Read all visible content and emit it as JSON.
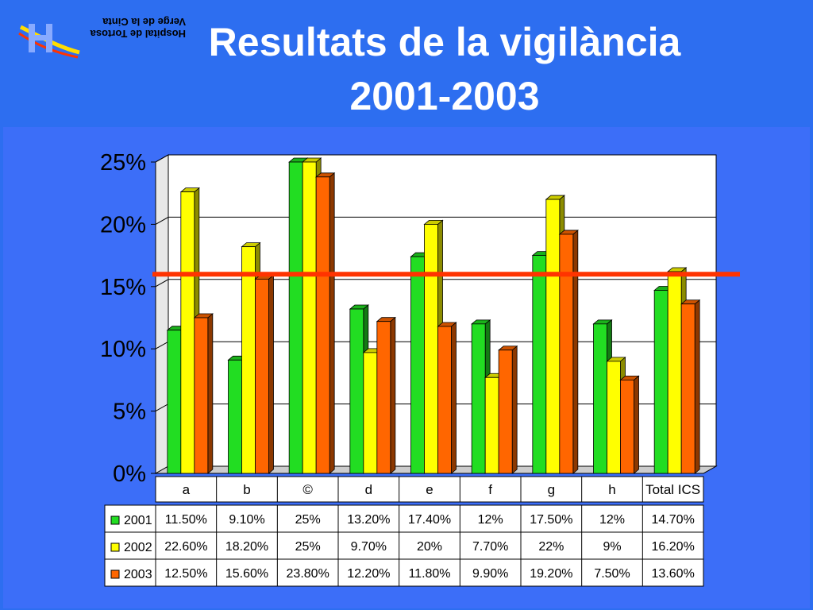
{
  "header": {
    "title_line1": "Resultats de la vigilància",
    "title_line2": "2001-2003",
    "logo_line1": "Hospital de Tortosa",
    "logo_line2": "Verge de la Cinta"
  },
  "colors": {
    "background": "#2d6ef0",
    "panel": "#3c6ef8",
    "plot": "#ffffff",
    "reference_line": "#ff3300",
    "series": [
      "#22dd22",
      "#ffff00",
      "#ff6600"
    ]
  },
  "chart_data": {
    "type": "bar",
    "categories": [
      "a",
      "b",
      "©",
      "d",
      "e",
      "f",
      "g",
      "h",
      "Total ICS"
    ],
    "series": [
      {
        "name": "2001",
        "values": [
          11.5,
          9.1,
          25,
          13.2,
          17.4,
          12,
          17.5,
          12,
          14.7
        ],
        "labels": [
          "11.50%",
          "9.10%",
          "25%",
          "13.20%",
          "17.40%",
          "12%",
          "17.50%",
          "12%",
          "14.70%"
        ]
      },
      {
        "name": "2002",
        "values": [
          22.6,
          18.2,
          25,
          9.7,
          20,
          7.7,
          22,
          9,
          16.2
        ],
        "labels": [
          "22.60%",
          "18.20%",
          "25%",
          "9.70%",
          "20%",
          "7.70%",
          "22%",
          "9%",
          "16.20%"
        ]
      },
      {
        "name": "2003",
        "values": [
          12.5,
          15.6,
          23.8,
          12.2,
          11.8,
          9.9,
          19.2,
          7.5,
          13.6
        ],
        "labels": [
          "12.50%",
          "15.60%",
          "23.80%",
          "12.20%",
          "11.80%",
          "9.90%",
          "19.20%",
          "7.50%",
          "13.60%"
        ]
      }
    ],
    "ylim": [
      0,
      25
    ],
    "yticks": [
      0,
      5,
      10,
      15,
      20,
      25
    ],
    "ytick_labels": [
      "0%",
      "5%",
      "10%",
      "15%",
      "20%",
      "25%"
    ],
    "reference_line": 15.8,
    "grid": true,
    "legend": "data-table"
  }
}
